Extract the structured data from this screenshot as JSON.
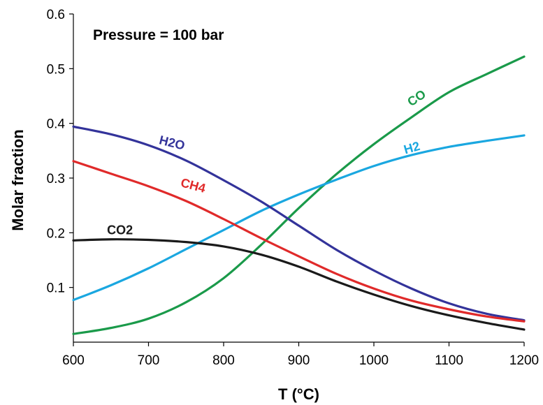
{
  "chart_data": {
    "type": "line",
    "title": "",
    "annotation": "Pressure = 100 bar",
    "xlabel": "T (°C)",
    "ylabel": "Molar fraction",
    "xlim": [
      600,
      1200
    ],
    "ylim": [
      0,
      0.6
    ],
    "xticks": [
      "600",
      "700",
      "800",
      "900",
      "1000",
      "1100",
      "1200"
    ],
    "yticks": [
      "0.1",
      "0.2",
      "0.3",
      "0.4",
      "0.5",
      "0.6"
    ],
    "grid": false,
    "legend": "none",
    "x": [
      600,
      650,
      700,
      750,
      800,
      850,
      900,
      950,
      1000,
      1050,
      1100,
      1150,
      1200
    ],
    "series": [
      {
        "name": "CO",
        "color": "#1a9a4a",
        "label_x": 1060,
        "label_y": 0.44,
        "label_rotate": -34,
        "values": [
          0.015,
          0.026,
          0.043,
          0.073,
          0.117,
          0.178,
          0.245,
          0.307,
          0.362,
          0.411,
          0.457,
          0.49,
          0.522
        ]
      },
      {
        "name": "H2",
        "color": "#1aa7e0",
        "label_x": 1052,
        "label_y": 0.348,
        "label_rotate": -16,
        "values": [
          0.077,
          0.104,
          0.135,
          0.17,
          0.205,
          0.24,
          0.27,
          0.297,
          0.322,
          0.342,
          0.357,
          0.368,
          0.378
        ]
      },
      {
        "name": "H2O",
        "color": "#33339a",
        "label_x": 730,
        "label_y": 0.357,
        "label_rotate": 14,
        "values": [
          0.394,
          0.38,
          0.36,
          0.332,
          0.296,
          0.257,
          0.213,
          0.169,
          0.131,
          0.098,
          0.071,
          0.052,
          0.04
        ]
      },
      {
        "name": "CH4",
        "color": "#e02a2a",
        "label_x": 758,
        "label_y": 0.279,
        "label_rotate": 15,
        "values": [
          0.331,
          0.308,
          0.285,
          0.258,
          0.225,
          0.19,
          0.157,
          0.125,
          0.098,
          0.076,
          0.06,
          0.047,
          0.038
        ]
      },
      {
        "name": "CO2",
        "color": "#1a1a1a",
        "label_x": 662,
        "label_y": 0.197,
        "label_rotate": 0,
        "values": [
          0.186,
          0.188,
          0.187,
          0.183,
          0.175,
          0.16,
          0.138,
          0.111,
          0.087,
          0.066,
          0.049,
          0.035,
          0.023
        ]
      }
    ]
  }
}
